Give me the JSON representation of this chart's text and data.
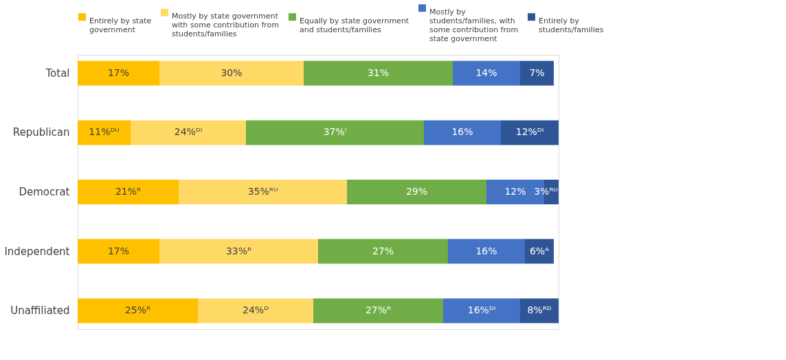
{
  "chart_data": {
    "type": "bar",
    "orientation": "horizontal",
    "stacked": true,
    "legend": "top",
    "categories": [
      "Total",
      "Republican",
      "Democrat",
      "Independent",
      "Unaffiliated"
    ],
    "series": [
      {
        "name": "Entirely by state government",
        "color": "#ffc000",
        "values": [
          17,
          11,
          21,
          17,
          25
        ],
        "value_labels": [
          "17%",
          "11%ᴰᵁ",
          "21%ᴿ",
          "17%",
          "25%ᴿ"
        ]
      },
      {
        "name": "Mostly by state government with some contribution from students/families",
        "color": "#ffd966",
        "values": [
          30,
          24,
          35,
          33,
          24
        ],
        "value_labels": [
          "30%",
          "24%ᴰᴵ",
          "35%ᴿᵁ",
          "33%ᴿ",
          "24%ᴰ"
        ]
      },
      {
        "name": "Equally by state government and students/families",
        "color": "#70ad47",
        "values": [
          31,
          37,
          29,
          27,
          27
        ],
        "value_labels": [
          "31%",
          "37%ᴵ",
          "29%",
          "27%",
          "27%ᴿ"
        ]
      },
      {
        "name": "Mostly by students/families, with some contribution from state government",
        "color": "#4472c4",
        "values": [
          14,
          16,
          12,
          16,
          16
        ],
        "value_labels": [
          "14%",
          "16%",
          "12%",
          "16%",
          "16%ᴰᴵ"
        ]
      },
      {
        "name": "Entirely by students/families",
        "color": "#2f5597",
        "values": [
          7,
          12,
          3,
          6,
          8
        ],
        "value_labels": [
          "7%",
          "12%ᴰᴵ",
          "3%ᴿᵁ",
          "6%ᴬ",
          "8%ᴿᴰ"
        ]
      }
    ]
  }
}
